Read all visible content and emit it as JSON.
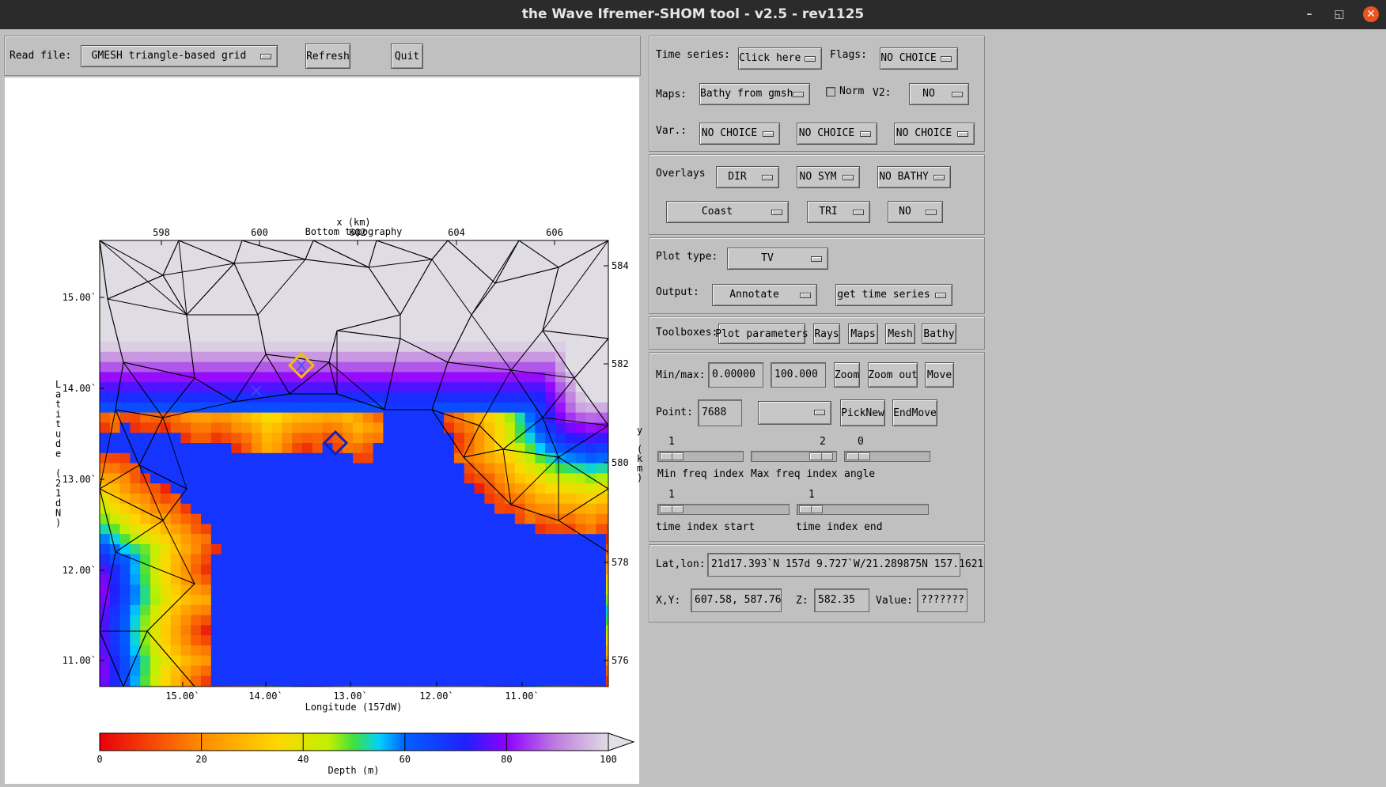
{
  "window": {
    "title": "the Wave Ifremer-SHOM tool - v2.5 - rev1125",
    "controls": [
      "–",
      "◱",
      "✕"
    ]
  },
  "toolbar": {
    "read_file_label": "Read file:",
    "grid_menu": "GMESH triangle-based grid",
    "refresh": "Refresh",
    "quit": "Quit"
  },
  "panel1": {
    "time_series_label": "Time series:",
    "time_series_menu": "Click here",
    "flags_label": "Flags:",
    "flags_menu": "NO CHOICE",
    "maps_label": "Maps:",
    "maps_menu": "Bathy from gmsh",
    "norm_label": "Norm",
    "v2_label": "V2:",
    "v2_menu": "NO",
    "var_label": "Var.:",
    "var_menus": [
      "NO CHOICE",
      "NO CHOICE",
      "NO CHOICE"
    ]
  },
  "panel2": {
    "overlays_label": "Overlays",
    "overlay_menus": [
      "DIR",
      "NO SYM",
      "NO BATHY",
      "Coast",
      "TRI",
      "NO"
    ]
  },
  "panel3": {
    "plot_type_label": "Plot type:",
    "plot_type_menu": "TV",
    "output_label": "Output:",
    "output_menu": "Annotate",
    "get_menu": "get time series"
  },
  "panel4": {
    "toolboxes_label": "Toolboxes:",
    "buttons": [
      "Plot parameters",
      "Rays",
      "Maps",
      "Mesh",
      "Bathy"
    ]
  },
  "panel5": {
    "minmax_label": "Min/max:",
    "min_value": "0.00000",
    "max_value": "100.000",
    "zoom": "Zoom",
    "zoom_out": "Zoom out",
    "move": "Move",
    "point_label": "Point:",
    "point_value": "7688",
    "point_menu": "",
    "pick_new": "PickNew",
    "end_move": "EndMove",
    "min_freq_value": "1",
    "max_freq_value": "2",
    "angle_value": "0",
    "min_freq_label": "Min freq index",
    "max_freq_label": "Max freq index",
    "angle_label": "angle",
    "time_start_value": "1",
    "time_end_value": "1",
    "time_start_label": "time index start",
    "time_end_label": "time index end"
  },
  "panel6": {
    "latlon_label": "Lat,lon:",
    "latlon_value": "21d17.393`N 157d 9.727`W/21.289875N 157.1621",
    "xy_label": "X,Y:",
    "xy_value": " 607.58,  587.76",
    "z_label": "Z:",
    "z_value": "582.35",
    "value_label": "Value:",
    "value_value": "???????"
  },
  "chart_data": {
    "type": "heatmap",
    "title": "Bottom topography",
    "xlabel": "Longitude (157dW)",
    "ylabel": "Latitude (21dN)",
    "top_xlabel": "x (km)",
    "right_ylabel": "y (km)",
    "x_ticks": [
      "15.00`",
      "14.00`",
      "13.00`",
      "12.00`",
      "11.00`"
    ],
    "y_ticks": [
      "15.00`",
      "14.00`",
      "13.00`",
      "12.00`",
      "11.00`"
    ],
    "top_ticks": [
      "598",
      "600",
      "602",
      "604",
      "606"
    ],
    "right_ticks": [
      "584",
      "582",
      "580",
      "578",
      "576"
    ],
    "colorbar_label": "Depth (m)",
    "colorbar_ticks": [
      "0",
      "20",
      "40",
      "60",
      "80",
      "100"
    ],
    "colorbar_range": [
      0,
      100
    ],
    "colors": [
      "#e8000b",
      "#ff8c00",
      "#ffd700",
      "#f0f000",
      "#80e000",
      "#00c8ff",
      "#0030ff",
      "#9000ff",
      "#d0c8e0"
    ]
  }
}
